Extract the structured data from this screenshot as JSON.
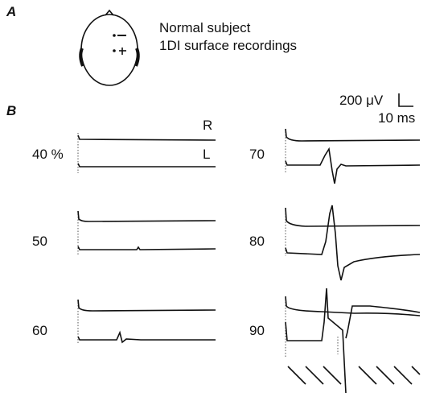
{
  "panel_a": {
    "label": "A",
    "lines": [
      "Normal subject",
      "1DI surface recordings"
    ]
  },
  "panel_b": {
    "label": "B",
    "scale_bar": {
      "amplitude": "200 μV",
      "time": "10 ms"
    },
    "trace_labels": [
      "R",
      "L"
    ],
    "intensities": [
      "40 %",
      "50",
      "60",
      "70",
      "80",
      "90"
    ]
  }
}
